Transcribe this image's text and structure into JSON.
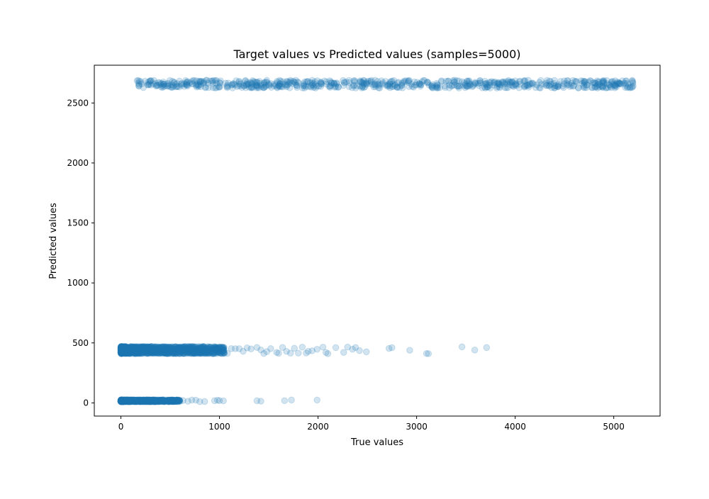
{
  "chart_data": {
    "type": "scatter",
    "title": "Target values vs Predicted values (samples=5000)",
    "xlabel": "True values",
    "ylabel": "Predicted values",
    "xlim": [
      -270,
      5470
    ],
    "ylim": [
      -110,
      2815
    ],
    "xticks": [
      0,
      1000,
      2000,
      3000,
      4000,
      5000
    ],
    "yticks": [
      0,
      500,
      1000,
      1500,
      2000,
      2500
    ],
    "xtick_labels": [
      "0",
      "1000",
      "2000",
      "3000",
      "4000",
      "5000"
    ],
    "ytick_labels": [
      "0",
      "500",
      "1000",
      "1500",
      "2000",
      "2500"
    ],
    "marker_color": "#1f77b4",
    "marker_alpha": 0.2,
    "grid": false,
    "legend": "none",
    "clusters": [
      {
        "description": "predicted near 0",
        "predicted_level": 15,
        "predicted_spread": [
          10,
          25
        ],
        "x_dense_range": [
          0,
          600
        ],
        "x_sparse_points": [
          630,
          680,
          720,
          760,
          800,
          850,
          950,
          980,
          1000,
          1040,
          1380,
          1420,
          1660,
          1730,
          1990
        ],
        "dense_count": 900
      },
      {
        "description": "predicted near 450",
        "predicted_level": 445,
        "predicted_spread": [
          410,
          470
        ],
        "x_dense_range": [
          0,
          1050
        ],
        "x_sparse_points": [
          1080,
          1120,
          1160,
          1200,
          1240,
          1280,
          1320,
          1380,
          1420,
          1450,
          1480,
          1520,
          1580,
          1600,
          1640,
          1680,
          1720,
          1760,
          1800,
          1840,
          1880,
          1900,
          1940,
          1990,
          2050,
          2080,
          2100,
          2180,
          2260,
          2300,
          2350,
          2380,
          2420,
          2490,
          2720,
          2750,
          2930,
          3100,
          3120,
          3460,
          3590,
          3710
        ],
        "dense_count": 1400
      },
      {
        "description": "predicted near 2650",
        "predicted_level": 2660,
        "predicted_spread": [
          2625,
          2690
        ],
        "x_dense_range": [
          160,
          5200
        ],
        "x_sparse_points": [],
        "dense_count": 700
      }
    ]
  }
}
